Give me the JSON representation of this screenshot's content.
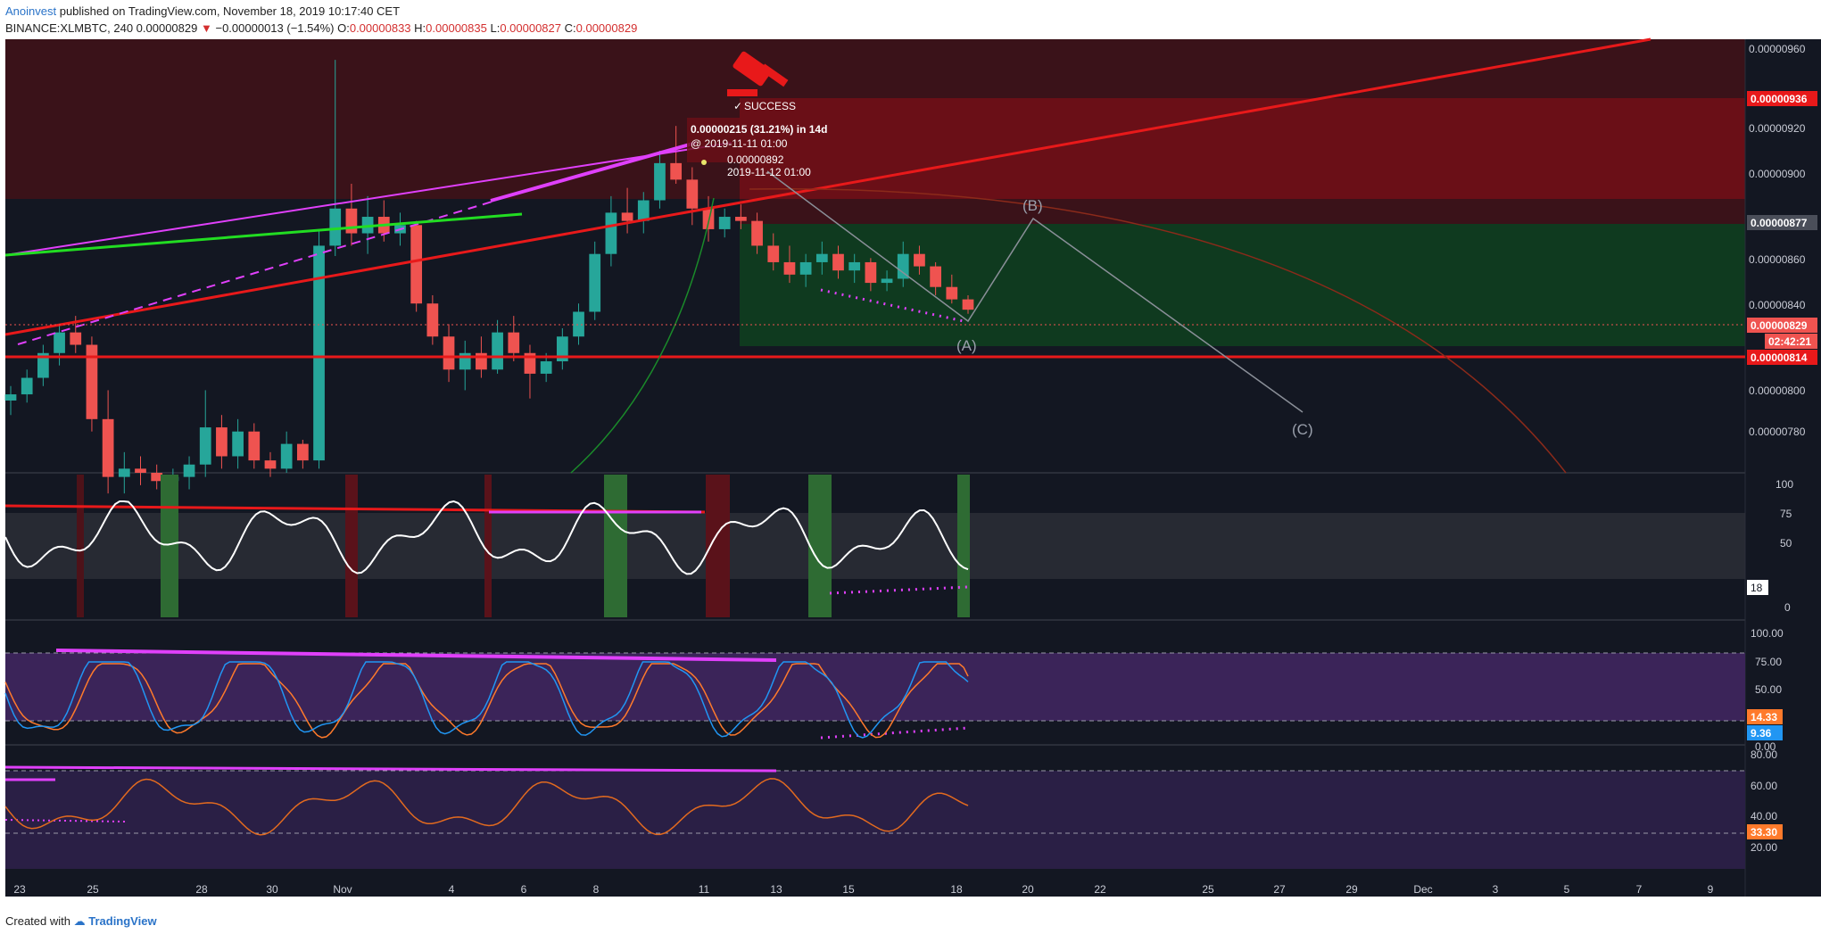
{
  "header": {
    "author": "Anoinvest",
    "published": "published on TradingView.com, November 18, 2019 10:17:40 CET",
    "symbol": "BINANCE:XLMBTC, 240",
    "last": "0.00000829",
    "arrow": "▼",
    "change": "−0.00000013 (−1.54%)",
    "o_label": "O:",
    "o": "0.00000833",
    "h_label": "H:",
    "h": "0.00000835",
    "l_label": "L:",
    "l": "0.00000827",
    "c_label": "C:",
    "c": "0.00000829"
  },
  "footer": {
    "created": "Created with",
    "brand": "TradingView"
  },
  "colors": {
    "background": "#131722",
    "up": "#26a69a",
    "down": "#ef5350",
    "red_line": "#e8191a",
    "magenta": "#e040fb",
    "green_line": "#22dd22"
  },
  "chart_data": {
    "type": "candlestick",
    "symbol": "BINANCE:XLMBTC",
    "interval": "240",
    "time_axis": [
      "23",
      "25",
      "28",
      "30",
      "Nov",
      "4",
      "6",
      "8",
      "11",
      "13",
      "15",
      "18",
      "20",
      "22",
      "25",
      "27",
      "29",
      "Dec",
      "3",
      "5",
      "7",
      "9"
    ],
    "price_ticks": [
      "0.00000960",
      "0.00000920",
      "0.00000900",
      "0.00000860",
      "0.00000840",
      "0.00000800",
      "0.00000780"
    ],
    "price_labels": {
      "resistance": "0.00000936",
      "level_877": "0.00000877",
      "last": "0.00000829",
      "countdown": "02:42:21",
      "support": "0.00000814"
    },
    "price_range": [
      7.5e-06,
      9.6e-06
    ],
    "annotations": {
      "success": "SUCCESS",
      "gain": "0.00000215 (31.21%) in 14d",
      "entry": "@ 2019-11-11  01:00",
      "high": "0.00000892",
      "high_time": "2019-11-12 01:00",
      "wave_a": "(A)",
      "wave_b": "(B)",
      "wave_c": "(C)"
    },
    "candles": [
      [
        7.85e-06,
        7.92e-06,
        7.78e-06,
        7.88e-06
      ],
      [
        7.88e-06,
        8e-06,
        7.84e-06,
        7.96e-06
      ],
      [
        7.96e-06,
        8.12e-06,
        7.92e-06,
        8.08e-06
      ],
      [
        8.08e-06,
        8.22e-06,
        8.02e-06,
        8.18e-06
      ],
      [
        8.18e-06,
        8.26e-06,
        8.08e-06,
        8.12e-06
      ],
      [
        8.12e-06,
        8.16e-06,
        7.7e-06,
        7.76e-06
      ],
      [
        7.76e-06,
        7.9e-06,
        7.4e-06,
        7.48e-06
      ],
      [
        7.48e-06,
        7.6e-06,
        7.4e-06,
        7.52e-06
      ],
      [
        7.52e-06,
        7.58e-06,
        7.44e-06,
        7.5e-06
      ],
      [
        7.5e-06,
        7.54e-06,
        7.42e-06,
        7.46e-06
      ],
      [
        7.46e-06,
        7.52e-06,
        7.4e-06,
        7.48e-06
      ],
      [
        7.48e-06,
        7.58e-06,
        7.42e-06,
        7.54e-06
      ],
      [
        7.54e-06,
        7.9e-06,
        7.48e-06,
        7.72e-06
      ],
      [
        7.72e-06,
        7.78e-06,
        7.52e-06,
        7.58e-06
      ],
      [
        7.58e-06,
        7.76e-06,
        7.52e-06,
        7.7e-06
      ],
      [
        7.7e-06,
        7.74e-06,
        7.52e-06,
        7.56e-06
      ],
      [
        7.56e-06,
        7.6e-06,
        7.48e-06,
        7.52e-06
      ],
      [
        7.52e-06,
        7.7e-06,
        7.5e-06,
        7.64e-06
      ],
      [
        7.64e-06,
        7.66e-06,
        7.52e-06,
        7.56e-06
      ],
      [
        7.56e-06,
        8.68e-06,
        7.52e-06,
        8.6e-06
      ],
      [
        8.6e-06,
        9.5e-06,
        8.55e-06,
        8.78e-06
      ],
      [
        8.78e-06,
        8.9e-06,
        8.6e-06,
        8.66e-06
      ],
      [
        8.66e-06,
        8.84e-06,
        8.56e-06,
        8.74e-06
      ],
      [
        8.74e-06,
        8.82e-06,
        8.62e-06,
        8.66e-06
      ],
      [
        8.66e-06,
        8.76e-06,
        8.6e-06,
        8.7e-06
      ],
      [
        8.7e-06,
        8.72e-06,
        8.28e-06,
        8.32e-06
      ],
      [
        8.32e-06,
        8.36e-06,
        8.12e-06,
        8.16e-06
      ],
      [
        8.16e-06,
        8.22e-06,
        7.94e-06,
        8e-06
      ],
      [
        8e-06,
        8.14e-06,
        7.9e-06,
        8.08e-06
      ],
      [
        8.08e-06,
        8.16e-06,
        7.96e-06,
        8e-06
      ],
      [
        8e-06,
        8.24e-06,
        7.98e-06,
        8.18e-06
      ],
      [
        8.18e-06,
        8.26e-06,
        8.04e-06,
        8.08e-06
      ],
      [
        8.08e-06,
        8.12e-06,
        7.86e-06,
        7.98e-06
      ],
      [
        7.98e-06,
        8.08e-06,
        7.94e-06,
        8.04e-06
      ],
      [
        8.04e-06,
        8.2e-06,
        8e-06,
        8.16e-06
      ],
      [
        8.16e-06,
        8.32e-06,
        8.12e-06,
        8.28e-06
      ],
      [
        8.28e-06,
        8.62e-06,
        8.24e-06,
        8.56e-06
      ],
      [
        8.56e-06,
        8.84e-06,
        8.5e-06,
        8.76e-06
      ],
      [
        8.76e-06,
        8.88e-06,
        8.66e-06,
        8.72e-06
      ],
      [
        8.72e-06,
        8.86e-06,
        8.66e-06,
        8.82e-06
      ],
      [
        8.82e-06,
        9.06e-06,
        8.78e-06,
        9e-06
      ],
      [
        9e-06,
        9.18e-06,
        8.9e-06,
        8.92e-06
      ],
      [
        8.92e-06,
        8.98e-06,
        8.7e-06,
        8.78e-06
      ],
      [
        8.78e-06,
        8.84e-06,
        8.62e-06,
        8.68e-06
      ],
      [
        8.68e-06,
        8.78e-06,
        8.64e-06,
        8.74e-06
      ],
      [
        8.74e-06,
        8.8e-06,
        8.68e-06,
        8.72e-06
      ],
      [
        8.72e-06,
        8.76e-06,
        8.56e-06,
        8.6e-06
      ],
      [
        8.6e-06,
        8.66e-06,
        8.48e-06,
        8.52e-06
      ],
      [
        8.52e-06,
        8.6e-06,
        8.42e-06,
        8.46e-06
      ],
      [
        8.46e-06,
        8.56e-06,
        8.4e-06,
        8.52e-06
      ],
      [
        8.52e-06,
        8.62e-06,
        8.46e-06,
        8.56e-06
      ],
      [
        8.56e-06,
        8.6e-06,
        8.44e-06,
        8.48e-06
      ],
      [
        8.48e-06,
        8.56e-06,
        8.42e-06,
        8.52e-06
      ],
      [
        8.52e-06,
        8.54e-06,
        8.38e-06,
        8.42e-06
      ],
      [
        8.42e-06,
        8.48e-06,
        8.38e-06,
        8.44e-06
      ],
      [
        8.44e-06,
        8.62e-06,
        8.4e-06,
        8.56e-06
      ],
      [
        8.56e-06,
        8.6e-06,
        8.46e-06,
        8.5e-06
      ],
      [
        8.5e-06,
        8.52e-06,
        8.36e-06,
        8.4e-06
      ],
      [
        8.4e-06,
        8.46e-06,
        8.32e-06,
        8.34e-06
      ],
      [
        8.34e-06,
        8.36e-06,
        8.27e-06,
        8.29e-06
      ]
    ],
    "indicators": [
      {
        "name": "oscillator",
        "ticks": [
          "100",
          "75",
          "50",
          "0"
        ],
        "value": "18"
      },
      {
        "name": "stochastic",
        "ticks": [
          "100.00",
          "75.00",
          "50.00",
          "0.00"
        ],
        "k": "14.33",
        "d": "9.36"
      },
      {
        "name": "rsi",
        "ticks": [
          "80.00",
          "60.00",
          "40.00",
          "20.00"
        ],
        "value": "33.30"
      }
    ]
  }
}
